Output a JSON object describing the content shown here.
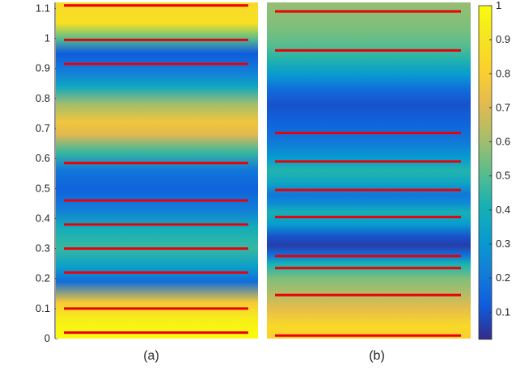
{
  "chart_data": {
    "type": "heatmap",
    "colormap": "parula",
    "y_axis": {
      "range": [
        0,
        1.12
      ],
      "ticks": [
        0,
        0.1,
        0.2,
        0.3,
        0.4,
        0.5,
        0.6,
        0.7,
        0.8,
        0.9,
        1,
        1.1
      ],
      "tick_labels": [
        "0",
        "0.1",
        "0.2",
        "0.3",
        "0.4",
        "0.5",
        "0.6",
        "0.7",
        "0.8",
        "0.9",
        "1",
        "1.1"
      ]
    },
    "colorbar": {
      "range": [
        0.02,
        1
      ],
      "ticks": [
        0.1,
        0.2,
        0.3,
        0.4,
        0.5,
        0.6,
        0.7,
        0.8,
        0.9,
        1
      ],
      "tick_labels": [
        "0.1",
        "0.2",
        "0.3",
        "0.4",
        "0.5",
        "0.6",
        "0.7",
        "0.8",
        "0.9",
        "1"
      ]
    },
    "panels": [
      {
        "label": "(a)",
        "color_profile": [
          {
            "y": 0.0,
            "v": 1.0
          },
          {
            "y": 0.06,
            "v": 0.95
          },
          {
            "y": 0.12,
            "v": 0.78
          },
          {
            "y": 0.19,
            "v": 0.15
          },
          {
            "y": 0.24,
            "v": 0.32
          },
          {
            "y": 0.3,
            "v": 0.45
          },
          {
            "y": 0.37,
            "v": 0.38
          },
          {
            "y": 0.43,
            "v": 0.2
          },
          {
            "y": 0.5,
            "v": 0.12
          },
          {
            "y": 0.56,
            "v": 0.18
          },
          {
            "y": 0.62,
            "v": 0.45
          },
          {
            "y": 0.68,
            "v": 0.7
          },
          {
            "y": 0.72,
            "v": 0.76
          },
          {
            "y": 0.78,
            "v": 0.6
          },
          {
            "y": 0.84,
            "v": 0.35
          },
          {
            "y": 0.89,
            "v": 0.2
          },
          {
            "y": 0.95,
            "v": 0.1
          },
          {
            "y": 1.0,
            "v": 0.5
          },
          {
            "y": 1.05,
            "v": 0.88
          },
          {
            "y": 1.12,
            "v": 0.85
          }
        ],
        "red_lines": [
          0.02,
          0.1,
          0.22,
          0.3,
          0.38,
          0.46,
          0.585,
          0.915,
          0.995,
          1.11
        ]
      },
      {
        "label": "(b)",
        "color_profile": [
          {
            "y": 0.0,
            "v": 0.8
          },
          {
            "y": 0.04,
            "v": 0.85
          },
          {
            "y": 0.1,
            "v": 0.72
          },
          {
            "y": 0.15,
            "v": 0.62
          },
          {
            "y": 0.2,
            "v": 0.55
          },
          {
            "y": 0.25,
            "v": 0.4
          },
          {
            "y": 0.28,
            "v": 0.15
          },
          {
            "y": 0.31,
            "v": 0.04
          },
          {
            "y": 0.34,
            "v": 0.08
          },
          {
            "y": 0.38,
            "v": 0.3
          },
          {
            "y": 0.42,
            "v": 0.4
          },
          {
            "y": 0.45,
            "v": 0.25
          },
          {
            "y": 0.48,
            "v": 0.18
          },
          {
            "y": 0.52,
            "v": 0.35
          },
          {
            "y": 0.56,
            "v": 0.42
          },
          {
            "y": 0.6,
            "v": 0.3
          },
          {
            "y": 0.66,
            "v": 0.18
          },
          {
            "y": 0.72,
            "v": 0.12
          },
          {
            "y": 0.78,
            "v": 0.08
          },
          {
            "y": 0.83,
            "v": 0.15
          },
          {
            "y": 0.88,
            "v": 0.3
          },
          {
            "y": 0.93,
            "v": 0.42
          },
          {
            "y": 0.98,
            "v": 0.5
          },
          {
            "y": 1.04,
            "v": 0.55
          },
          {
            "y": 1.12,
            "v": 0.58
          }
        ],
        "red_lines": [
          0.01,
          0.145,
          0.235,
          0.275,
          0.405,
          0.495,
          0.59,
          0.685,
          0.96,
          1.09
        ]
      }
    ],
    "line_color": "#e8000b"
  }
}
